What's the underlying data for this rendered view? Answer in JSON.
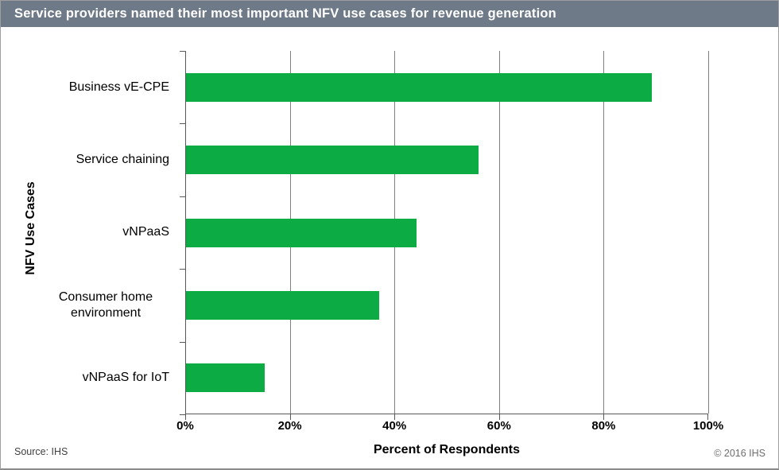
{
  "title_bar": {
    "text": "Service providers named their most important NFV use cases for revenue generation",
    "bg_color": "#6F7A88",
    "text_color": "#FFFFFF"
  },
  "chart_data": {
    "type": "bar",
    "orientation": "horizontal",
    "categories": [
      "Business vE-CPE",
      "Service chaining",
      "vNPaaS",
      "Consumer home environment",
      "vNPaaS for IoT"
    ],
    "values": [
      89,
      56,
      44,
      37,
      15
    ],
    "value_unit": "%",
    "xlabel": "Percent of Respondents",
    "ylabel": "NFV Use Cases",
    "xlim": [
      0,
      100
    ],
    "xticks": [
      0,
      20,
      40,
      60,
      80,
      100
    ],
    "xtick_labels": [
      "0%",
      "20%",
      "40%",
      "60%",
      "80%",
      "100%"
    ],
    "grid": true,
    "legend": "none",
    "bar_color": "#0DAB43",
    "gridline_color": "#808080",
    "axis_color": "#595959"
  },
  "footer": {
    "source": "Source: IHS",
    "copyright": "© 2016 IHS"
  }
}
